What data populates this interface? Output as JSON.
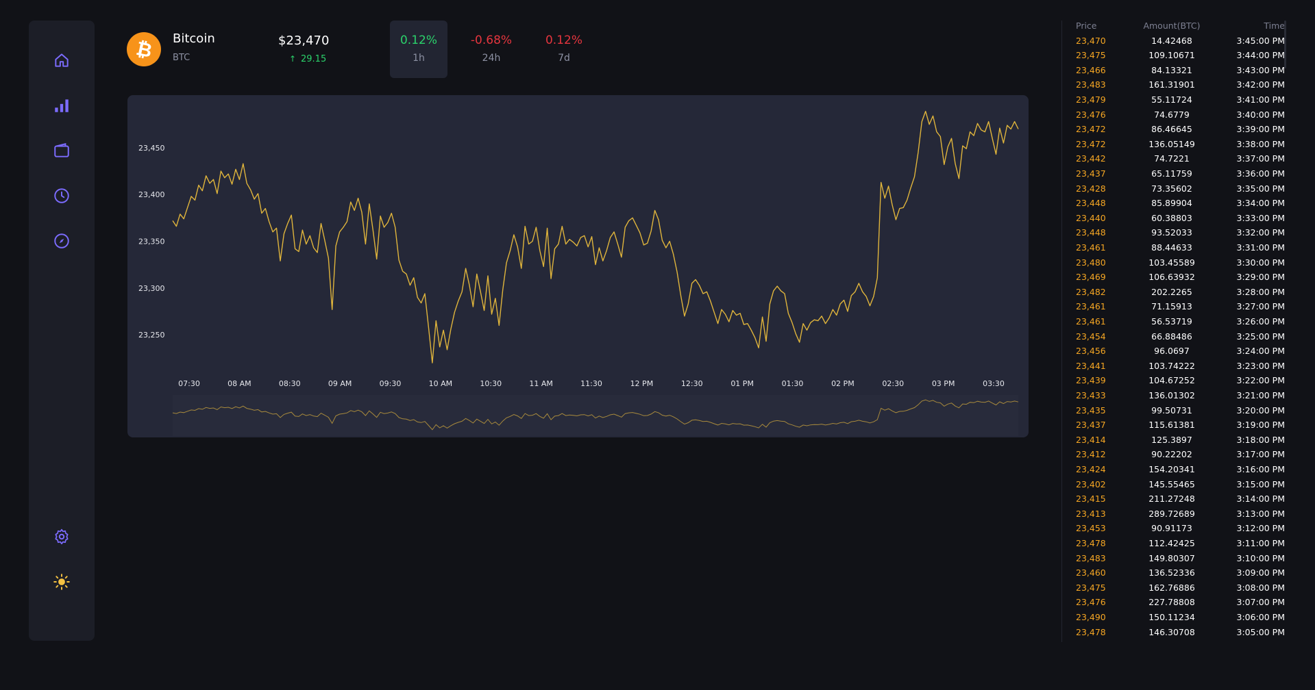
{
  "sidebar": {
    "items": [
      {
        "name": "home",
        "icon": "home-icon"
      },
      {
        "name": "markets",
        "icon": "bar-chart-icon"
      },
      {
        "name": "wallet",
        "icon": "wallet-icon"
      },
      {
        "name": "history",
        "icon": "clock-icon"
      },
      {
        "name": "explore",
        "icon": "compass-icon"
      }
    ],
    "bottom": [
      {
        "name": "settings",
        "icon": "gear-icon"
      },
      {
        "name": "theme",
        "icon": "sun-icon"
      }
    ],
    "accent": "#7c6cff"
  },
  "header": {
    "coin_name": "Bitcoin",
    "coin_symbol": "BTC",
    "price": "$23,470",
    "change": "29.15",
    "timeframes": [
      {
        "label": "1h",
        "value": "0.12%",
        "color": "#2bd26b",
        "active": true
      },
      {
        "label": "24h",
        "value": "-0.68%",
        "color": "#e5353e",
        "active": false
      },
      {
        "label": "7d",
        "value": "0.12%",
        "color": "#e5353e",
        "active": false
      }
    ]
  },
  "chart_data": {
    "type": "line",
    "series": [
      {
        "values": [
          23372,
          23366,
          23379,
          23374,
          23386,
          23398,
          23394,
          23410,
          23404,
          23420,
          23412,
          23416,
          23401,
          23425,
          23418,
          23422,
          23411,
          23427,
          23416,
          23433,
          23412,
          23405,
          23395,
          23401,
          23380,
          23385,
          23371,
          23360,
          23364,
          23329,
          23358,
          23369,
          23378,
          23342,
          23339,
          23362,
          23347,
          23356,
          23343,
          23338,
          23369,
          23351,
          23332,
          23277,
          23345,
          23360,
          23365,
          23371,
          23392,
          23383,
          23396,
          23381,
          23347,
          23390,
          23362,
          23331,
          23377,
          23365,
          23370,
          23380,
          23365,
          23330,
          23318,
          23315,
          23303,
          23311,
          23290,
          23284,
          23294,
          23258,
          23220,
          23265,
          23237,
          23255,
          23234,
          23256,
          23274,
          23286,
          23296,
          23321,
          23303,
          23280,
          23315,
          23296,
          23276,
          23313,
          23272,
          23289,
          23260,
          23298,
          23327,
          23340,
          23357,
          23344,
          23321,
          23366,
          23347,
          23350,
          23365,
          23340,
          23323,
          23364,
          23310,
          23342,
          23347,
          23366,
          23347,
          23352,
          23349,
          23345,
          23354,
          23356,
          23344,
          23355,
          23325,
          23343,
          23329,
          23340,
          23354,
          23360,
          23347,
          23333,
          23365,
          23372,
          23375,
          23367,
          23359,
          23346,
          23348,
          23361,
          23383,
          23373,
          23351,
          23343,
          23350,
          23336,
          23317,
          23292,
          23270,
          23283,
          23305,
          23309,
          23303,
          23294,
          23296,
          23286,
          23274,
          23262,
          23277,
          23272,
          23264,
          23276,
          23271,
          23273,
          23261,
          23262,
          23255,
          23247,
          23236,
          23269,
          23243,
          23283,
          23297,
          23302,
          23297,
          23294,
          23273,
          23263,
          23251,
          23242,
          23262,
          23255,
          23263,
          23266,
          23265,
          23270,
          23262,
          23268,
          23277,
          23271,
          23283,
          23287,
          23275,
          23292,
          23296,
          23305,
          23296,
          23291,
          23281,
          23291,
          23311,
          23413,
          23396,
          23409,
          23389,
          23373,
          23385,
          23386,
          23394,
          23407,
          23419,
          23445,
          23478,
          23489,
          23475,
          23484,
          23467,
          23462,
          23432,
          23451,
          23460,
          23433,
          23417,
          23452,
          23449,
          23467,
          23463,
          23476,
          23469,
          23467,
          23478,
          23460,
          23443,
          23471,
          23455,
          23474,
          23470,
          23478,
          23470
        ]
      }
    ],
    "yticks": [
      "23,450",
      "23,400",
      "23,350",
      "23,300",
      "23,250"
    ],
    "ytick_values": [
      23450,
      23400,
      23350,
      23300,
      23250
    ],
    "xticks": [
      "07:30",
      "08 AM",
      "08:30",
      "09 AM",
      "09:30",
      "10 AM",
      "10:30",
      "11 AM",
      "11:30",
      "12 PM",
      "12:30",
      "01 PM",
      "01:30",
      "02 PM",
      "02:30",
      "03 PM",
      "03:30"
    ],
    "ylim": [
      23212,
      23496
    ],
    "line_color": "#e0b53c",
    "grid": false
  },
  "trades": {
    "headers": {
      "price": "Price",
      "amount": "Amount(BTC)",
      "time": "Time"
    },
    "rows": [
      [
        "23,470",
        "14.42468",
        "3:45:00 PM"
      ],
      [
        "23,475",
        "109.10671",
        "3:44:00 PM"
      ],
      [
        "23,466",
        "84.13321",
        "3:43:00 PM"
      ],
      [
        "23,483",
        "161.31901",
        "3:42:00 PM"
      ],
      [
        "23,479",
        "55.11724",
        "3:41:00 PM"
      ],
      [
        "23,476",
        "74.6779",
        "3:40:00 PM"
      ],
      [
        "23,472",
        "86.46645",
        "3:39:00 PM"
      ],
      [
        "23,472",
        "136.05149",
        "3:38:00 PM"
      ],
      [
        "23,442",
        "74.7221",
        "3:37:00 PM"
      ],
      [
        "23,437",
        "65.11759",
        "3:36:00 PM"
      ],
      [
        "23,428",
        "73.35602",
        "3:35:00 PM"
      ],
      [
        "23,448",
        "85.89904",
        "3:34:00 PM"
      ],
      [
        "23,440",
        "60.38803",
        "3:33:00 PM"
      ],
      [
        "23,448",
        "93.52033",
        "3:32:00 PM"
      ],
      [
        "23,461",
        "88.44633",
        "3:31:00 PM"
      ],
      [
        "23,480",
        "103.45589",
        "3:30:00 PM"
      ],
      [
        "23,469",
        "106.63932",
        "3:29:00 PM"
      ],
      [
        "23,482",
        "202.2265",
        "3:28:00 PM"
      ],
      [
        "23,461",
        "71.15913",
        "3:27:00 PM"
      ],
      [
        "23,461",
        "56.53719",
        "3:26:00 PM"
      ],
      [
        "23,454",
        "66.88486",
        "3:25:00 PM"
      ],
      [
        "23,456",
        "96.0697",
        "3:24:00 PM"
      ],
      [
        "23,441",
        "103.74222",
        "3:23:00 PM"
      ],
      [
        "23,439",
        "104.67252",
        "3:22:00 PM"
      ],
      [
        "23,433",
        "136.01302",
        "3:21:00 PM"
      ],
      [
        "23,435",
        "99.50731",
        "3:20:00 PM"
      ],
      [
        "23,437",
        "115.61381",
        "3:19:00 PM"
      ],
      [
        "23,414",
        "125.3897",
        "3:18:00 PM"
      ],
      [
        "23,412",
        "90.22202",
        "3:17:00 PM"
      ],
      [
        "23,424",
        "154.20341",
        "3:16:00 PM"
      ],
      [
        "23,402",
        "145.55465",
        "3:15:00 PM"
      ],
      [
        "23,415",
        "211.27248",
        "3:14:00 PM"
      ],
      [
        "23,413",
        "289.72689",
        "3:13:00 PM"
      ],
      [
        "23,453",
        "90.91173",
        "3:12:00 PM"
      ],
      [
        "23,478",
        "112.42425",
        "3:11:00 PM"
      ],
      [
        "23,483",
        "149.80307",
        "3:10:00 PM"
      ],
      [
        "23,460",
        "136.52336",
        "3:09:00 PM"
      ],
      [
        "23,475",
        "162.76886",
        "3:08:00 PM"
      ],
      [
        "23,476",
        "227.78808",
        "3:07:00 PM"
      ],
      [
        "23,490",
        "150.11234",
        "3:06:00 PM"
      ],
      [
        "23,478",
        "146.30708",
        "3:05:00 PM"
      ]
    ]
  }
}
